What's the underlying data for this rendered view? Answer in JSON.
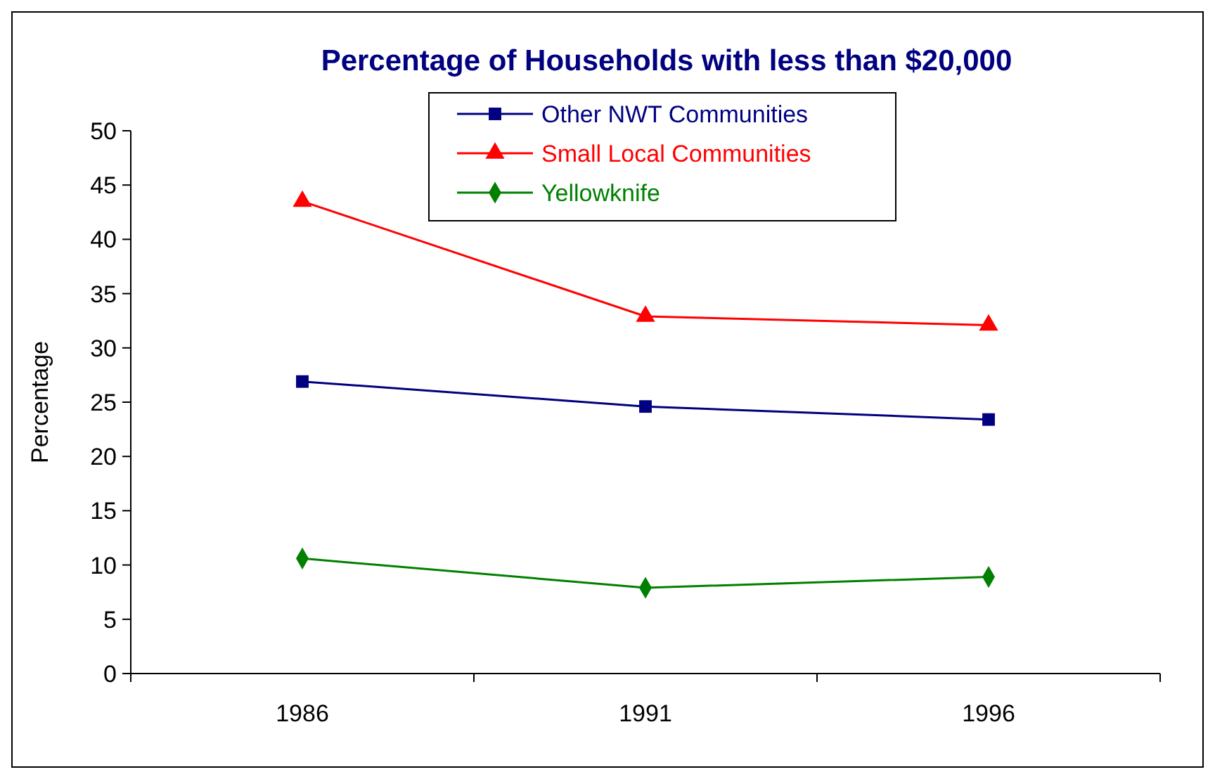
{
  "chart_data": {
    "type": "line",
    "title": "Percentage of Households with less than $20,000",
    "ylabel": "Percentage",
    "categories": [
      "1986",
      "1991",
      "1996"
    ],
    "series": [
      {
        "name": "Other NWT Communities",
        "color": "#000080",
        "marker": "square",
        "values": [
          26.9,
          24.6,
          23.4
        ]
      },
      {
        "name": "Small Local Communities",
        "color": "#ff0000",
        "marker": "triangle",
        "values": [
          43.5,
          32.9,
          32.1
        ]
      },
      {
        "name": "Yellowknife",
        "color": "#008000",
        "marker": "diamond",
        "values": [
          10.6,
          7.9,
          8.9
        ]
      }
    ],
    "ylim": [
      0,
      50
    ],
    "yticks": [
      0,
      5,
      10,
      15,
      20,
      25,
      30,
      35,
      40,
      45,
      50
    ],
    "grid": false,
    "legend": "top"
  }
}
